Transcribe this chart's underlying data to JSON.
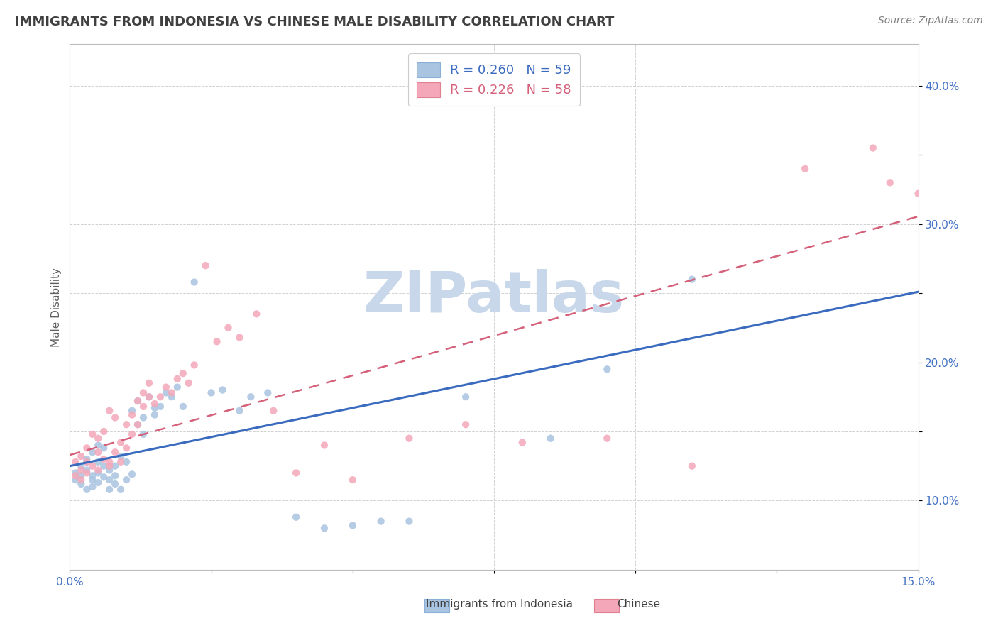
{
  "title": "IMMIGRANTS FROM INDONESIA VS CHINESE MALE DISABILITY CORRELATION CHART",
  "source_text": "Source: ZipAtlas.com",
  "ylabel": "Male Disability",
  "xlim": [
    0.0,
    0.15
  ],
  "ylim": [
    0.05,
    0.43
  ],
  "xticks": [
    0.0,
    0.025,
    0.05,
    0.075,
    0.1,
    0.125,
    0.15
  ],
  "xtick_labels": [
    "0.0%",
    "",
    "",
    "",
    "",
    "",
    "15.0%"
  ],
  "yticks": [
    0.1,
    0.15,
    0.2,
    0.25,
    0.3,
    0.35,
    0.4
  ],
  "ytick_labels": [
    "10.0%",
    "",
    "20.0%",
    "",
    "30.0%",
    "",
    "40.0%"
  ],
  "series1_label": "Immigrants from Indonesia",
  "series1_R": "0.260",
  "series1_N": "59",
  "series1_color": "#a8c4e0",
  "series1_line_color": "#3a6bbf",
  "series2_label": "Chinese",
  "series2_R": "0.226",
  "series2_N": "58",
  "series2_color": "#f4a7b9",
  "series2_line_color": "#d4607a",
  "watermark": "ZIPatlas",
  "watermark_color": "#c8d8ea",
  "background_color": "#ffffff",
  "grid_color": "#cccccc",
  "title_color": "#404040",
  "axis_label_color": "#4472c4",
  "series1_x": [
    0.001,
    0.001,
    0.002,
    0.002,
    0.002,
    0.003,
    0.003,
    0.003,
    0.003,
    0.004,
    0.004,
    0.004,
    0.004,
    0.005,
    0.005,
    0.005,
    0.005,
    0.006,
    0.006,
    0.006,
    0.007,
    0.007,
    0.007,
    0.008,
    0.008,
    0.008,
    0.009,
    0.009,
    0.01,
    0.01,
    0.011,
    0.011,
    0.012,
    0.012,
    0.013,
    0.013,
    0.014,
    0.015,
    0.015,
    0.016,
    0.017,
    0.018,
    0.019,
    0.02,
    0.022,
    0.025,
    0.027,
    0.03,
    0.032,
    0.035,
    0.04,
    0.045,
    0.05,
    0.055,
    0.06,
    0.07,
    0.085,
    0.095,
    0.11
  ],
  "series1_y": [
    0.12,
    0.115,
    0.125,
    0.118,
    0.112,
    0.13,
    0.108,
    0.122,
    0.128,
    0.115,
    0.11,
    0.135,
    0.118,
    0.128,
    0.113,
    0.12,
    0.14,
    0.117,
    0.125,
    0.138,
    0.115,
    0.122,
    0.108,
    0.125,
    0.112,
    0.118,
    0.132,
    0.108,
    0.128,
    0.115,
    0.165,
    0.119,
    0.155,
    0.172,
    0.16,
    0.148,
    0.175,
    0.167,
    0.162,
    0.168,
    0.178,
    0.175,
    0.182,
    0.168,
    0.258,
    0.178,
    0.18,
    0.165,
    0.175,
    0.178,
    0.088,
    0.08,
    0.082,
    0.085,
    0.085,
    0.175,
    0.145,
    0.195,
    0.26
  ],
  "series2_x": [
    0.001,
    0.001,
    0.002,
    0.002,
    0.002,
    0.003,
    0.003,
    0.003,
    0.004,
    0.004,
    0.005,
    0.005,
    0.005,
    0.006,
    0.006,
    0.007,
    0.007,
    0.007,
    0.008,
    0.008,
    0.009,
    0.009,
    0.01,
    0.01,
    0.011,
    0.011,
    0.012,
    0.012,
    0.013,
    0.013,
    0.014,
    0.014,
    0.015,
    0.016,
    0.017,
    0.018,
    0.019,
    0.02,
    0.021,
    0.022,
    0.024,
    0.026,
    0.028,
    0.03,
    0.033,
    0.036,
    0.04,
    0.045,
    0.05,
    0.06,
    0.07,
    0.08,
    0.095,
    0.11,
    0.13,
    0.142,
    0.145,
    0.15
  ],
  "series2_y": [
    0.128,
    0.118,
    0.122,
    0.115,
    0.132,
    0.128,
    0.12,
    0.138,
    0.125,
    0.148,
    0.122,
    0.135,
    0.145,
    0.13,
    0.15,
    0.125,
    0.165,
    0.128,
    0.135,
    0.16,
    0.142,
    0.128,
    0.155,
    0.138,
    0.162,
    0.148,
    0.172,
    0.155,
    0.168,
    0.178,
    0.175,
    0.185,
    0.17,
    0.175,
    0.182,
    0.178,
    0.188,
    0.192,
    0.185,
    0.198,
    0.27,
    0.215,
    0.225,
    0.218,
    0.235,
    0.165,
    0.12,
    0.14,
    0.115,
    0.145,
    0.155,
    0.142,
    0.145,
    0.125,
    0.34,
    0.355,
    0.33,
    0.322
  ]
}
